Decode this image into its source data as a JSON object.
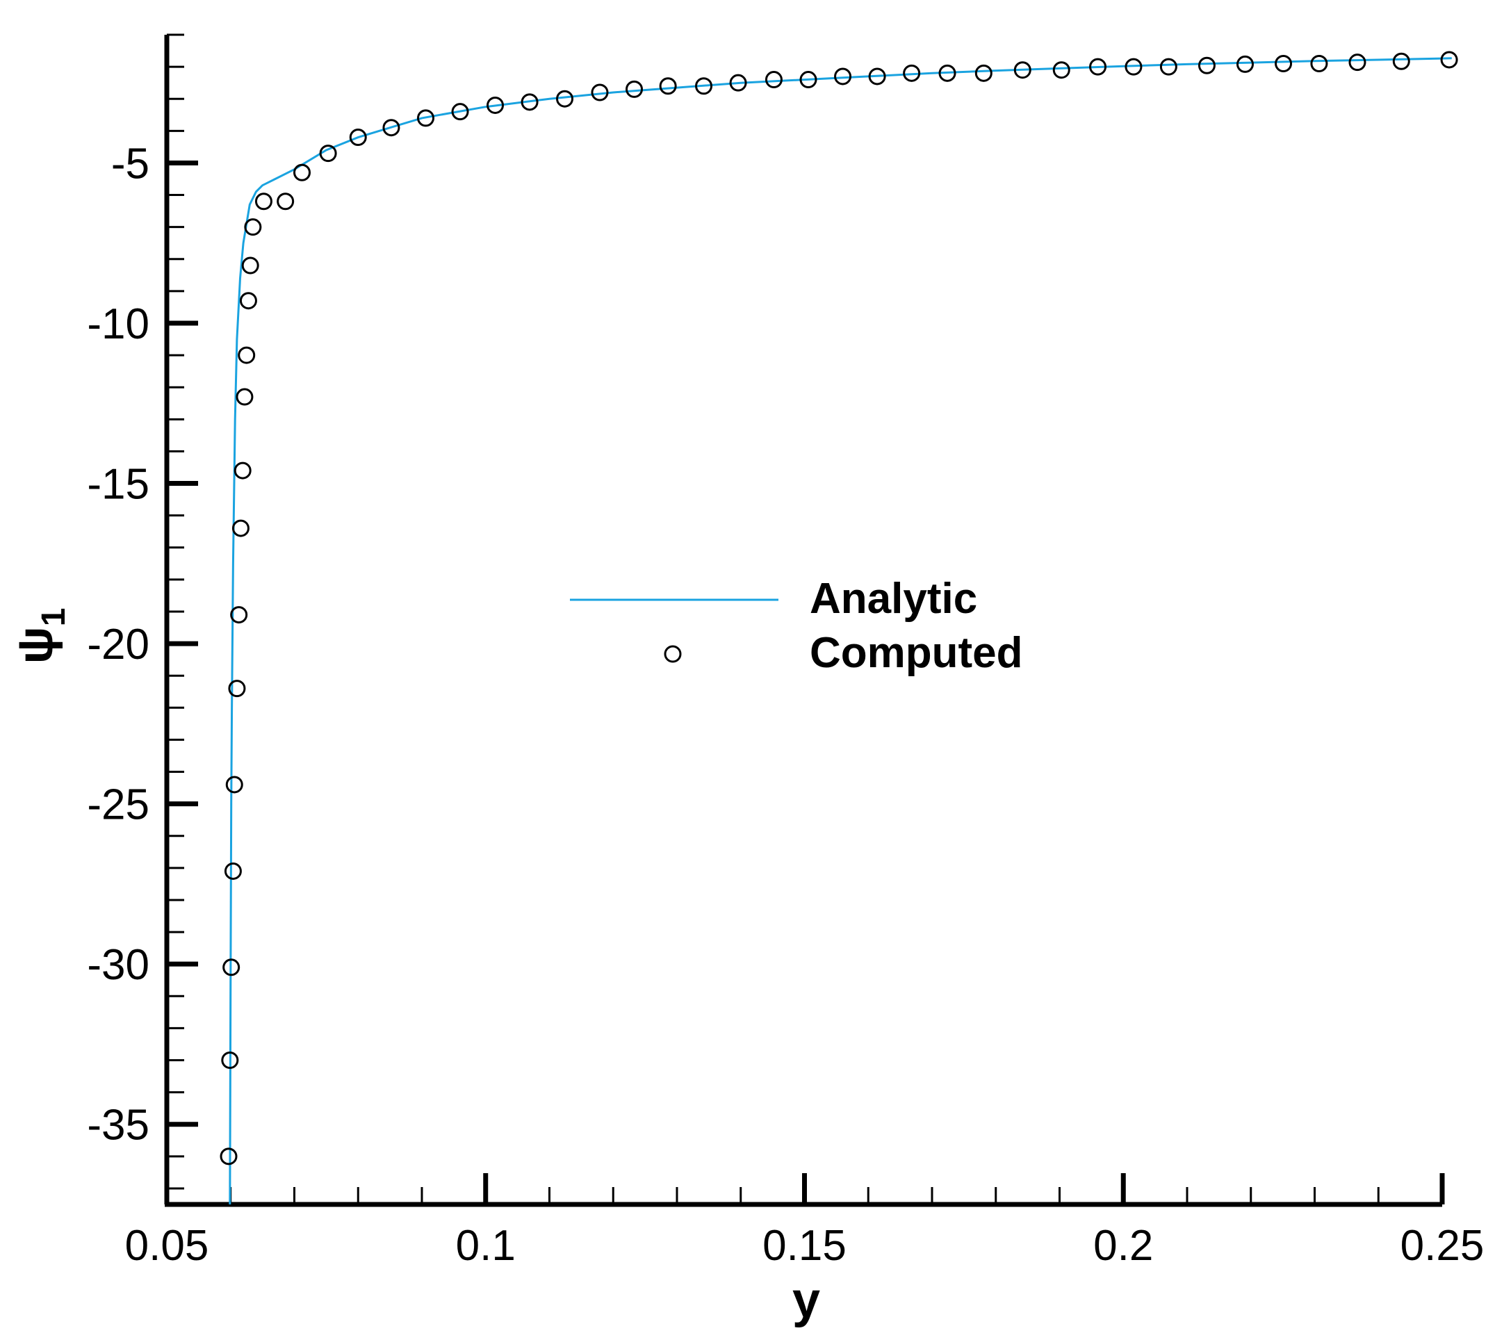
{
  "chart_data": {
    "type": "line",
    "title": "",
    "xlabel": "y",
    "ylabel": "ψ",
    "ylabel_subscript": "1",
    "xlim": [
      0.05,
      0.25
    ],
    "ylim": [
      -37.5,
      -1.0
    ],
    "x_ticks": [
      0.05,
      0.1,
      0.15,
      0.2,
      0.25
    ],
    "x_tick_labels": [
      "0.05",
      "0.1",
      "0.15",
      "0.2",
      "0.25"
    ],
    "y_ticks": [
      -35,
      -30,
      -25,
      -20,
      -15,
      -10,
      -5
    ],
    "y_tick_labels": [
      "-35",
      "-30",
      "-25",
      "-20",
      "-15",
      "-10",
      "-5"
    ],
    "grid": false,
    "legend_position": "center",
    "colors": {
      "analytic": "#1aa3e0",
      "computed": "#000000"
    },
    "series": [
      {
        "name": "Analytic",
        "style": "line",
        "x": [
          0.0599,
          0.06,
          0.0601,
          0.0602,
          0.0604,
          0.0607,
          0.061,
          0.0615,
          0.062,
          0.063,
          0.064,
          0.065,
          0.067,
          0.07,
          0.075,
          0.08,
          0.085,
          0.09,
          0.1,
          0.11,
          0.12,
          0.13,
          0.14,
          0.15,
          0.16,
          0.17,
          0.18,
          0.19,
          0.2,
          0.21,
          0.22,
          0.23,
          0.24,
          0.25,
          0.2515
        ],
        "y": [
          -37.5,
          -31.0,
          -25.0,
          -22.0,
          -17.5,
          -13.0,
          -10.5,
          -8.6,
          -7.5,
          -6.3,
          -5.9,
          -5.7,
          -5.5,
          -5.2,
          -4.6,
          -4.2,
          -3.9,
          -3.6,
          -3.25,
          -3.0,
          -2.8,
          -2.65,
          -2.5,
          -2.4,
          -2.3,
          -2.2,
          -2.12,
          -2.05,
          -1.98,
          -1.92,
          -1.87,
          -1.82,
          -1.78,
          -1.74,
          -1.73
        ]
      },
      {
        "name": "Computed",
        "style": "circles",
        "x": [
          0.0597,
          0.0599,
          0.0601,
          0.0604,
          0.0606,
          0.061,
          0.0613,
          0.0616,
          0.0619,
          0.0622,
          0.0625,
          0.0628,
          0.0631,
          0.0635,
          0.0652,
          0.0686,
          0.0712,
          0.0753,
          0.08,
          0.0852,
          0.0906,
          0.096,
          0.1015,
          0.1069,
          0.1124,
          0.1179,
          0.1233,
          0.1286,
          0.1342,
          0.1396,
          0.1452,
          0.1506,
          0.156,
          0.1614,
          0.1668,
          0.1724,
          0.1781,
          0.1842,
          0.1903,
          0.196,
          0.2016,
          0.2071,
          0.2131,
          0.2191,
          0.2251,
          0.2307,
          0.2367,
          0.2436,
          0.2511
        ],
        "y": [
          -36.0,
          -33.0,
          -30.1,
          -27.1,
          -24.4,
          -21.4,
          -19.1,
          -16.4,
          -14.6,
          -12.3,
          -11.0,
          -9.3,
          -8.2,
          -7.0,
          -6.2,
          -6.2,
          -5.3,
          -4.7,
          -4.2,
          -3.9,
          -3.6,
          -3.4,
          -3.2,
          -3.1,
          -3.0,
          -2.8,
          -2.7,
          -2.6,
          -2.6,
          -2.5,
          -2.4,
          -2.4,
          -2.3,
          -2.3,
          -2.2,
          -2.2,
          -2.2,
          -2.1,
          -2.1,
          -2.0,
          -2.0,
          -2.0,
          -1.96,
          -1.92,
          -1.9,
          -1.9,
          -1.86,
          -1.83,
          -1.78
        ]
      }
    ]
  }
}
